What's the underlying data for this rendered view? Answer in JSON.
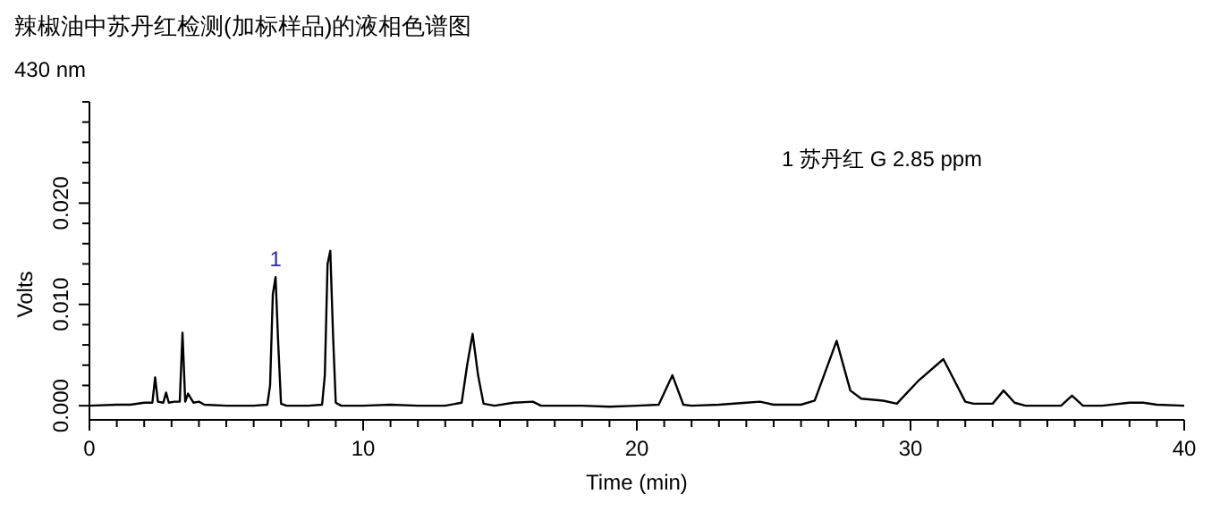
{
  "chart_data": {
    "type": "line",
    "title": "辣椒油中苏丹红检测(加标样品)的液相色谱图",
    "subtitle": "430 nm",
    "xlabel": "Time (min)",
    "ylabel": "Volts",
    "x": [
      0,
      1,
      1.5,
      2,
      2.3,
      2.4,
      2.5,
      2.7,
      2.8,
      2.9,
      3.1,
      3.3,
      3.4,
      3.5,
      3.6,
      3.8,
      4.0,
      4.2,
      5,
      6,
      6.5,
      6.6,
      6.7,
      6.8,
      6.9,
      7.0,
      7.2,
      8,
      8.5,
      8.6,
      8.7,
      8.8,
      8.9,
      9.0,
      9.2,
      10,
      11,
      12,
      13,
      13.6,
      13.8,
      14.0,
      14.2,
      14.4,
      14.8,
      15.5,
      16.2,
      16.5,
      18,
      19,
      20,
      20.8,
      21.3,
      21.7,
      22,
      23,
      24,
      24.5,
      25,
      26,
      26.5,
      27.3,
      27.8,
      28.2,
      29,
      29.5,
      30.3,
      31.2,
      31.6,
      32,
      32.3,
      33,
      33.4,
      33.8,
      34.2,
      35,
      35.5,
      35.9,
      36.3,
      37,
      38,
      38.5,
      39,
      40
    ],
    "series": [
      {
        "color": "#000000",
        "values": [
          0.0,
          0.0001,
          0.0001,
          0.0003,
          0.0003,
          0.0028,
          0.0004,
          0.0003,
          0.0013,
          0.0003,
          0.0004,
          0.0004,
          0.0072,
          0.0004,
          0.0012,
          0.0003,
          0.0004,
          0.0001,
          0.0,
          0.0,
          0.0001,
          0.002,
          0.011,
          0.0127,
          0.006,
          0.0002,
          0.0,
          0.0,
          0.0001,
          0.003,
          0.014,
          0.0153,
          0.007,
          0.0003,
          0.0,
          0.0,
          0.0001,
          0.0,
          0.0,
          0.0003,
          0.004,
          0.0071,
          0.003,
          0.0002,
          0.0,
          0.0003,
          0.0004,
          0.0,
          0.0,
          -0.0001,
          0.0,
          0.0001,
          0.003,
          0.0001,
          0.0,
          0.0001,
          0.0003,
          0.0004,
          0.0001,
          0.0001,
          0.0005,
          0.0064,
          0.0015,
          0.0007,
          0.0005,
          0.0002,
          0.0025,
          0.0046,
          0.0025,
          0.0004,
          0.0002,
          0.0002,
          0.0015,
          0.0003,
          0.0,
          0.0,
          0.0,
          0.001,
          0.0,
          0.0,
          0.0003,
          0.0003,
          0.0001,
          0.0
        ]
      }
    ],
    "xlim": [
      0,
      40
    ],
    "xticks": [
      0,
      {
        "value": 1,
        "label": null
      },
      {
        "value": 2,
        "label": null
      },
      {
        "value": 3,
        "label": null
      },
      {
        "value": 4,
        "label": null
      },
      {
        "value": 5,
        "label": null
      },
      {
        "value": 6,
        "label": null
      },
      {
        "value": 7,
        "label": null
      },
      {
        "value": 8,
        "label": null
      },
      {
        "value": 9,
        "label": null
      },
      10,
      {
        "value": 11,
        "label": null
      },
      {
        "value": 12,
        "label": null
      },
      {
        "value": 13,
        "label": null
      },
      {
        "value": 14,
        "label": null
      },
      {
        "value": 15,
        "label": null
      },
      {
        "value": 16,
        "label": null
      },
      {
        "value": 17,
        "label": null
      },
      {
        "value": 18,
        "label": null
      },
      {
        "value": 19,
        "label": null
      },
      20,
      {
        "value": 21,
        "label": null
      },
      {
        "value": 22,
        "label": null
      },
      {
        "value": 23,
        "label": null
      },
      {
        "value": 24,
        "label": null
      },
      {
        "value": 25,
        "label": null
      },
      {
        "value": 26,
        "label": null
      },
      {
        "value": 27,
        "label": null
      },
      {
        "value": 28,
        "label": null
      },
      {
        "value": 29,
        "label": null
      },
      30,
      {
        "value": 31,
        "label": null
      },
      {
        "value": 32,
        "label": null
      },
      {
        "value": 33,
        "label": null
      },
      {
        "value": 34,
        "label": null
      },
      {
        "value": 35,
        "label": null
      },
      {
        "value": 36,
        "label": null
      },
      {
        "value": 37,
        "label": null
      },
      {
        "value": 38,
        "label": null
      },
      {
        "value": 39,
        "label": null
      },
      40
    ],
    "ylim": [
      -0.0014,
      0.03
    ],
    "yticks": [
      {
        "value": 0,
        "label": "0.000"
      },
      {
        "value": 0.002,
        "label": null
      },
      {
        "value": 0.004,
        "label": null
      },
      {
        "value": 0.006,
        "label": null
      },
      {
        "value": 0.008,
        "label": null
      },
      {
        "value": 0.01,
        "label": "0.010"
      },
      {
        "value": 0.012,
        "label": null
      },
      {
        "value": 0.014,
        "label": null
      },
      {
        "value": 0.016,
        "label": null
      },
      {
        "value": 0.018,
        "label": null
      },
      {
        "value": 0.02,
        "label": "0.020"
      },
      {
        "value": 0.022,
        "label": null
      },
      {
        "value": 0.024,
        "label": null
      },
      {
        "value": 0.026,
        "label": null
      },
      {
        "value": 0.028,
        "label": null
      },
      {
        "value": 0.03,
        "label": null
      }
    ],
    "annotations": [
      {
        "text": "1",
        "x": 6.8,
        "y": 0.0127
      },
      "1 苏丹红 G 2.85 ppm"
    ],
    "grid": false,
    "marker": "none",
    "line_style": "solid"
  }
}
